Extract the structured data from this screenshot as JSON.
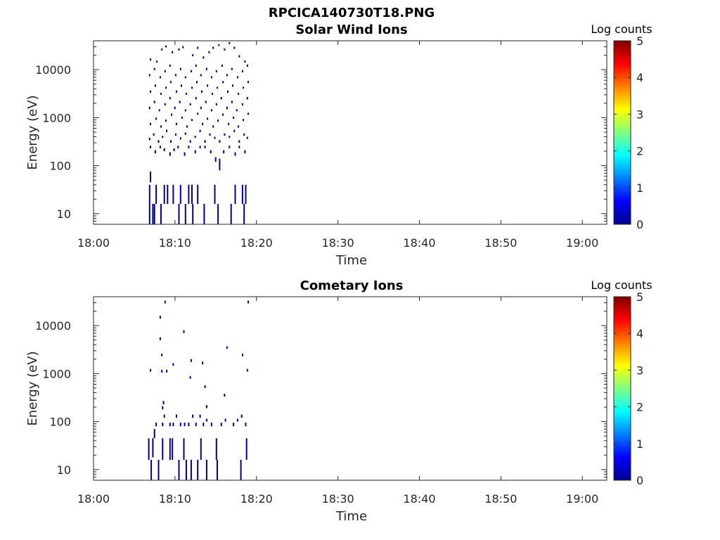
{
  "figure": {
    "title": "RPCICA140730T18.PNG"
  },
  "chart_data": [
    {
      "type": "heatmap",
      "title": "Solar Wind Ions",
      "xlabel": "Time",
      "ylabel": "Energy (eV)",
      "x_unit": "minutes after 18:00",
      "x_tick_labels": [
        "18:00",
        "18:10",
        "18:20",
        "18:30",
        "18:40",
        "18:50",
        "19:00"
      ],
      "x_tick_values": [
        0,
        10,
        20,
        30,
        40,
        50,
        60
      ],
      "xlim": [
        0,
        63
      ],
      "y_scale": "log",
      "ylim": [
        6,
        40000
      ],
      "y_tick_values": [
        10,
        100,
        1000,
        10000
      ],
      "y_tick_labels": [
        "10",
        "100",
        "1000",
        "10000"
      ],
      "colorbar": {
        "label": "Log counts",
        "range": [
          0,
          5
        ],
        "ticks": [
          "0",
          "1",
          "2",
          "3",
          "4",
          "5"
        ],
        "colormap": "jet"
      },
      "data_extent_minutes": [
        6.7,
        19.0
      ],
      "cells": [
        [
          6.8,
          16,
          40
        ],
        [
          6.8,
          6,
          16
        ],
        [
          6.9,
          45,
          75
        ],
        [
          7.2,
          6,
          16
        ],
        [
          7.4,
          6,
          16
        ],
        [
          7.6,
          16,
          40
        ],
        [
          8.2,
          6,
          16
        ],
        [
          8.6,
          16,
          40
        ],
        [
          9.0,
          16,
          40
        ],
        [
          9.7,
          16,
          40
        ],
        [
          10.4,
          6,
          16
        ],
        [
          10.6,
          16,
          40
        ],
        [
          11.2,
          6,
          16
        ],
        [
          11.6,
          16,
          40
        ],
        [
          12.0,
          16,
          40
        ],
        [
          12.1,
          6,
          16
        ],
        [
          12.7,
          16,
          40
        ],
        [
          13.5,
          6,
          16
        ],
        [
          14.8,
          16,
          40
        ],
        [
          15.2,
          6,
          16
        ],
        [
          16.8,
          6,
          16
        ],
        [
          17.3,
          16,
          40
        ],
        [
          18.2,
          16,
          40
        ],
        [
          18.4,
          6,
          16
        ],
        [
          18.6,
          16,
          40
        ],
        [
          6.9,
          230,
          260
        ],
        [
          7.5,
          180,
          210
        ],
        [
          8.1,
          230,
          260
        ],
        [
          8.6,
          200,
          230
        ],
        [
          9.3,
          160,
          190
        ],
        [
          9.8,
          200,
          230
        ],
        [
          10.3,
          230,
          260
        ],
        [
          11.1,
          160,
          190
        ],
        [
          11.6,
          230,
          260
        ],
        [
          12.4,
          180,
          210
        ],
        [
          13.0,
          230,
          260
        ],
        [
          13.6,
          230,
          260
        ],
        [
          14.3,
          180,
          210
        ],
        [
          14.9,
          120,
          150
        ],
        [
          15.4,
          80,
          140
        ],
        [
          15.9,
          180,
          210
        ],
        [
          16.6,
          230,
          260
        ],
        [
          17.3,
          160,
          190
        ],
        [
          17.8,
          230,
          260
        ],
        [
          18.5,
          180,
          210
        ],
        [
          6.8,
          340,
          380
        ],
        [
          7.3,
          420,
          470
        ],
        [
          7.9,
          300,
          340
        ],
        [
          8.4,
          380,
          420
        ],
        [
          8.9,
          500,
          560
        ],
        [
          9.4,
          300,
          340
        ],
        [
          10.0,
          420,
          470
        ],
        [
          10.6,
          350,
          390
        ],
        [
          11.2,
          440,
          490
        ],
        [
          11.8,
          300,
          340
        ],
        [
          12.4,
          380,
          420
        ],
        [
          13.0,
          500,
          560
        ],
        [
          13.6,
          300,
          340
        ],
        [
          14.2,
          420,
          470
        ],
        [
          14.8,
          360,
          400
        ],
        [
          15.4,
          300,
          340
        ],
        [
          16.0,
          420,
          470
        ],
        [
          16.6,
          380,
          420
        ],
        [
          17.2,
          500,
          560
        ],
        [
          17.8,
          300,
          340
        ],
        [
          18.4,
          420,
          470
        ],
        [
          18.8,
          360,
          400
        ],
        [
          6.9,
          700,
          780
        ],
        [
          7.6,
          900,
          1000
        ],
        [
          8.2,
          620,
          690
        ],
        [
          8.8,
          820,
          910
        ],
        [
          9.5,
          1100,
          1220
        ],
        [
          10.1,
          700,
          780
        ],
        [
          10.8,
          950,
          1050
        ],
        [
          11.4,
          620,
          690
        ],
        [
          12.0,
          850,
          940
        ],
        [
          12.7,
          1150,
          1270
        ],
        [
          13.3,
          700,
          780
        ],
        [
          13.9,
          900,
          1000
        ],
        [
          14.6,
          620,
          690
        ],
        [
          15.2,
          820,
          910
        ],
        [
          15.8,
          1100,
          1220
        ],
        [
          16.5,
          700,
          780
        ],
        [
          17.1,
          950,
          1050
        ],
        [
          17.7,
          620,
          690
        ],
        [
          18.3,
          850,
          940
        ],
        [
          18.9,
          1150,
          1270
        ],
        [
          6.8,
          1500,
          1700
        ],
        [
          7.4,
          2000,
          2250
        ],
        [
          8.0,
          1350,
          1500
        ],
        [
          8.7,
          1800,
          2000
        ],
        [
          9.3,
          2400,
          2700
        ],
        [
          9.9,
          1500,
          1700
        ],
        [
          10.5,
          2000,
          2250
        ],
        [
          11.2,
          1350,
          1500
        ],
        [
          11.8,
          1800,
          2000
        ],
        [
          12.5,
          2400,
          2700
        ],
        [
          13.1,
          1500,
          1700
        ],
        [
          13.7,
          2000,
          2250
        ],
        [
          14.4,
          1350,
          1500
        ],
        [
          15.0,
          1800,
          2000
        ],
        [
          15.6,
          2400,
          2700
        ],
        [
          16.3,
          1500,
          1700
        ],
        [
          16.9,
          2000,
          2250
        ],
        [
          17.5,
          1350,
          1500
        ],
        [
          18.2,
          1800,
          2000
        ],
        [
          18.8,
          2400,
          2700
        ],
        [
          6.9,
          3300,
          3700
        ],
        [
          7.5,
          4400,
          4900
        ],
        [
          8.2,
          3000,
          3300
        ],
        [
          8.8,
          4000,
          4400
        ],
        [
          9.4,
          5200,
          5800
        ],
        [
          10.1,
          3300,
          3700
        ],
        [
          10.7,
          4400,
          4900
        ],
        [
          11.3,
          3000,
          3300
        ],
        [
          12.0,
          4000,
          4400
        ],
        [
          12.6,
          5200,
          5800
        ],
        [
          13.2,
          3300,
          3700
        ],
        [
          13.9,
          4400,
          4900
        ],
        [
          14.5,
          3000,
          3300
        ],
        [
          15.1,
          4000,
          4400
        ],
        [
          15.8,
          5200,
          5800
        ],
        [
          16.4,
          3300,
          3700
        ],
        [
          17.0,
          4400,
          4900
        ],
        [
          17.7,
          3000,
          3300
        ],
        [
          18.3,
          4000,
          4400
        ],
        [
          18.9,
          5200,
          5800
        ],
        [
          6.8,
          7300,
          8100
        ],
        [
          7.4,
          9800,
          10900
        ],
        [
          8.1,
          6600,
          7300
        ],
        [
          8.7,
          8800,
          9800
        ],
        [
          9.3,
          11500,
          12800
        ],
        [
          10.0,
          7300,
          8100
        ],
        [
          10.6,
          9800,
          10900
        ],
        [
          11.2,
          6600,
          7300
        ],
        [
          11.9,
          8800,
          9800
        ],
        [
          12.5,
          11500,
          12800
        ],
        [
          13.1,
          7300,
          8100
        ],
        [
          13.8,
          9800,
          10900
        ],
        [
          14.4,
          6600,
          7300
        ],
        [
          15.0,
          8800,
          9800
        ],
        [
          15.7,
          11500,
          12800
        ],
        [
          16.3,
          7300,
          8100
        ],
        [
          16.9,
          9800,
          10900
        ],
        [
          17.6,
          6600,
          7300
        ],
        [
          18.2,
          8800,
          9800
        ],
        [
          18.8,
          11500,
          12800
        ],
        [
          6.9,
          15500,
          17200
        ],
        [
          7.7,
          14000,
          15500
        ],
        [
          8.3,
          25000,
          27700
        ],
        [
          8.8,
          29000,
          32000
        ],
        [
          9.6,
          22000,
          24400
        ],
        [
          10.4,
          25000,
          27700
        ],
        [
          10.9,
          28000,
          31000
        ],
        [
          12.1,
          19000,
          21000
        ],
        [
          12.7,
          27000,
          30000
        ],
        [
          13.4,
          17000,
          18900
        ],
        [
          14.1,
          22000,
          24400
        ],
        [
          14.6,
          27000,
          30000
        ],
        [
          15.3,
          31000,
          34000
        ],
        [
          16.0,
          25000,
          27700
        ],
        [
          16.6,
          34000,
          37500
        ],
        [
          17.2,
          27000,
          30000
        ],
        [
          17.8,
          18000,
          20000
        ],
        [
          18.5,
          14000,
          15500
        ]
      ]
    },
    {
      "type": "heatmap",
      "title": "Cometary Ions",
      "xlabel": "Time",
      "ylabel": "Energy (eV)",
      "x_unit": "minutes after 18:00",
      "x_tick_labels": [
        "18:00",
        "18:10",
        "18:20",
        "18:30",
        "18:40",
        "18:50",
        "19:00"
      ],
      "x_tick_values": [
        0,
        10,
        20,
        30,
        40,
        50,
        60
      ],
      "xlim": [
        0,
        63
      ],
      "y_scale": "log",
      "ylim": [
        6,
        40000
      ],
      "y_tick_values": [
        10,
        100,
        1000,
        10000
      ],
      "y_tick_labels": [
        "10",
        "100",
        "1000",
        "10000"
      ],
      "colorbar": {
        "label": "Log counts",
        "range": [
          0,
          5
        ],
        "ticks": [
          "0",
          "1",
          "2",
          "3",
          "4",
          "5"
        ],
        "colormap": "jet"
      },
      "data_extent_minutes": [
        6.7,
        19.0
      ],
      "cells": [
        [
          6.7,
          16,
          45
        ],
        [
          7.0,
          6,
          16
        ],
        [
          7.2,
          18,
          45
        ],
        [
          7.4,
          45,
          70
        ],
        [
          7.9,
          6,
          16
        ],
        [
          8.4,
          16,
          45
        ],
        [
          9.3,
          16,
          45
        ],
        [
          9.6,
          16,
          45
        ],
        [
          10.4,
          6,
          16
        ],
        [
          11.0,
          16,
          45
        ],
        [
          11.3,
          6,
          16
        ],
        [
          11.9,
          6,
          16
        ],
        [
          12.7,
          6,
          16
        ],
        [
          13.1,
          16,
          45
        ],
        [
          13.8,
          6,
          16
        ],
        [
          15.0,
          16,
          45
        ],
        [
          15.1,
          6,
          16
        ],
        [
          18.0,
          6,
          16
        ],
        [
          18.7,
          16,
          45
        ],
        [
          7.6,
          80,
          95
        ],
        [
          8.4,
          80,
          95
        ],
        [
          8.6,
          120,
          140
        ],
        [
          9.3,
          80,
          95
        ],
        [
          9.7,
          80,
          95
        ],
        [
          10.1,
          120,
          140
        ],
        [
          10.6,
          80,
          95
        ],
        [
          11.1,
          80,
          95
        ],
        [
          11.6,
          80,
          95
        ],
        [
          12.1,
          120,
          140
        ],
        [
          12.5,
          80,
          95
        ],
        [
          13.0,
          120,
          140
        ],
        [
          13.4,
          80,
          95
        ],
        [
          13.8,
          100,
          115
        ],
        [
          14.4,
          80,
          95
        ],
        [
          15.6,
          80,
          95
        ],
        [
          16.1,
          100,
          115
        ],
        [
          17.1,
          80,
          95
        ],
        [
          17.6,
          100,
          115
        ],
        [
          18.1,
          120,
          140
        ],
        [
          18.6,
          80,
          95
        ],
        [
          8.5,
          230,
          270
        ],
        [
          8.4,
          180,
          210
        ],
        [
          13.8,
          190,
          220
        ],
        [
          16.0,
          330,
          380
        ],
        [
          13.6,
          500,
          570
        ],
        [
          8.3,
          1050,
          1200
        ],
        [
          8.9,
          1050,
          1200
        ],
        [
          9.7,
          1450,
          1650
        ],
        [
          11.8,
          780,
          890
        ],
        [
          11.9,
          1750,
          2000
        ],
        [
          13.3,
          1550,
          1770
        ],
        [
          18.8,
          1100,
          1250
        ],
        [
          6.9,
          1100,
          1250
        ],
        [
          8.3,
          2300,
          2600
        ],
        [
          16.3,
          3300,
          3700
        ],
        [
          18.2,
          2300,
          2600
        ],
        [
          8.1,
          5000,
          5700
        ],
        [
          11.0,
          7000,
          8000
        ],
        [
          8.1,
          14000,
          16000
        ],
        [
          8.7,
          29000,
          33000
        ],
        [
          18.9,
          29000,
          33000
        ]
      ]
    }
  ]
}
